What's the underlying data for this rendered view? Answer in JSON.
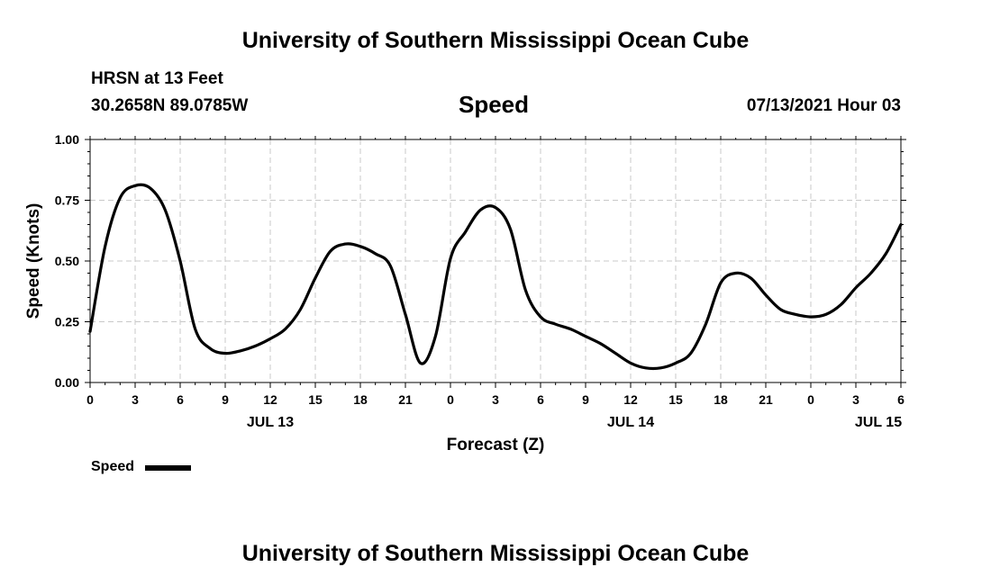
{
  "header": {
    "title": "University of Southern Mississippi Ocean Cube",
    "station": "HRSN at 13 Feet",
    "coords": "30.2658N  89.0785W",
    "chart_title": "Speed",
    "datetime": "07/13/2021 Hour 03"
  },
  "footer": {
    "title": "University of Southern Mississippi Ocean Cube"
  },
  "legend": {
    "label": "Speed",
    "color": "#000000"
  },
  "chart_data": {
    "type": "line",
    "title": "Speed",
    "xlabel": "Forecast (Z)",
    "ylabel": "Speed (Knots)",
    "ylim": [
      0,
      1.0
    ],
    "xlim": [
      0,
      54
    ],
    "x_unit": "forecast hour (from 07/13/2021 00Z)",
    "x_tick_labels": [
      "0",
      "3",
      "6",
      "9",
      "12",
      "15",
      "18",
      "21",
      "0",
      "3",
      "6",
      "9",
      "12",
      "15",
      "18",
      "21",
      "0",
      "3",
      "6"
    ],
    "date_labels": [
      {
        "label": "JUL 13",
        "at": 12
      },
      {
        "label": "JUL 14",
        "at": 36
      },
      {
        "label": "JUL 15",
        "at": 52.5
      }
    ],
    "y_tick_labels": [
      "0.00",
      "0.25",
      "0.50",
      "0.75",
      "1.00"
    ],
    "grid": true,
    "legend_position": "bottom-left",
    "series": [
      {
        "name": "Speed",
        "color": "#000000",
        "x": [
          0,
          1,
          2,
          3,
          4,
          5,
          6,
          7,
          8,
          9,
          10,
          11,
          12,
          13,
          14,
          15,
          16,
          17,
          18,
          19,
          20,
          21,
          22,
          23,
          24,
          25,
          26,
          27,
          28,
          29,
          30,
          31,
          32,
          33,
          34,
          35,
          36,
          37,
          38,
          39,
          40,
          41,
          42,
          43,
          44,
          45,
          46,
          47,
          48,
          49,
          50,
          51,
          52,
          53,
          54
        ],
        "y": [
          0.21,
          0.56,
          0.76,
          0.81,
          0.8,
          0.71,
          0.5,
          0.22,
          0.14,
          0.12,
          0.13,
          0.15,
          0.18,
          0.22,
          0.3,
          0.43,
          0.54,
          0.57,
          0.56,
          0.53,
          0.48,
          0.28,
          0.08,
          0.19,
          0.51,
          0.62,
          0.71,
          0.72,
          0.63,
          0.38,
          0.27,
          0.24,
          0.22,
          0.19,
          0.16,
          0.12,
          0.08,
          0.06,
          0.06,
          0.08,
          0.12,
          0.24,
          0.41,
          0.45,
          0.43,
          0.36,
          0.3,
          0.28,
          0.27,
          0.28,
          0.32,
          0.39,
          0.45,
          0.53,
          0.65
        ]
      }
    ]
  }
}
